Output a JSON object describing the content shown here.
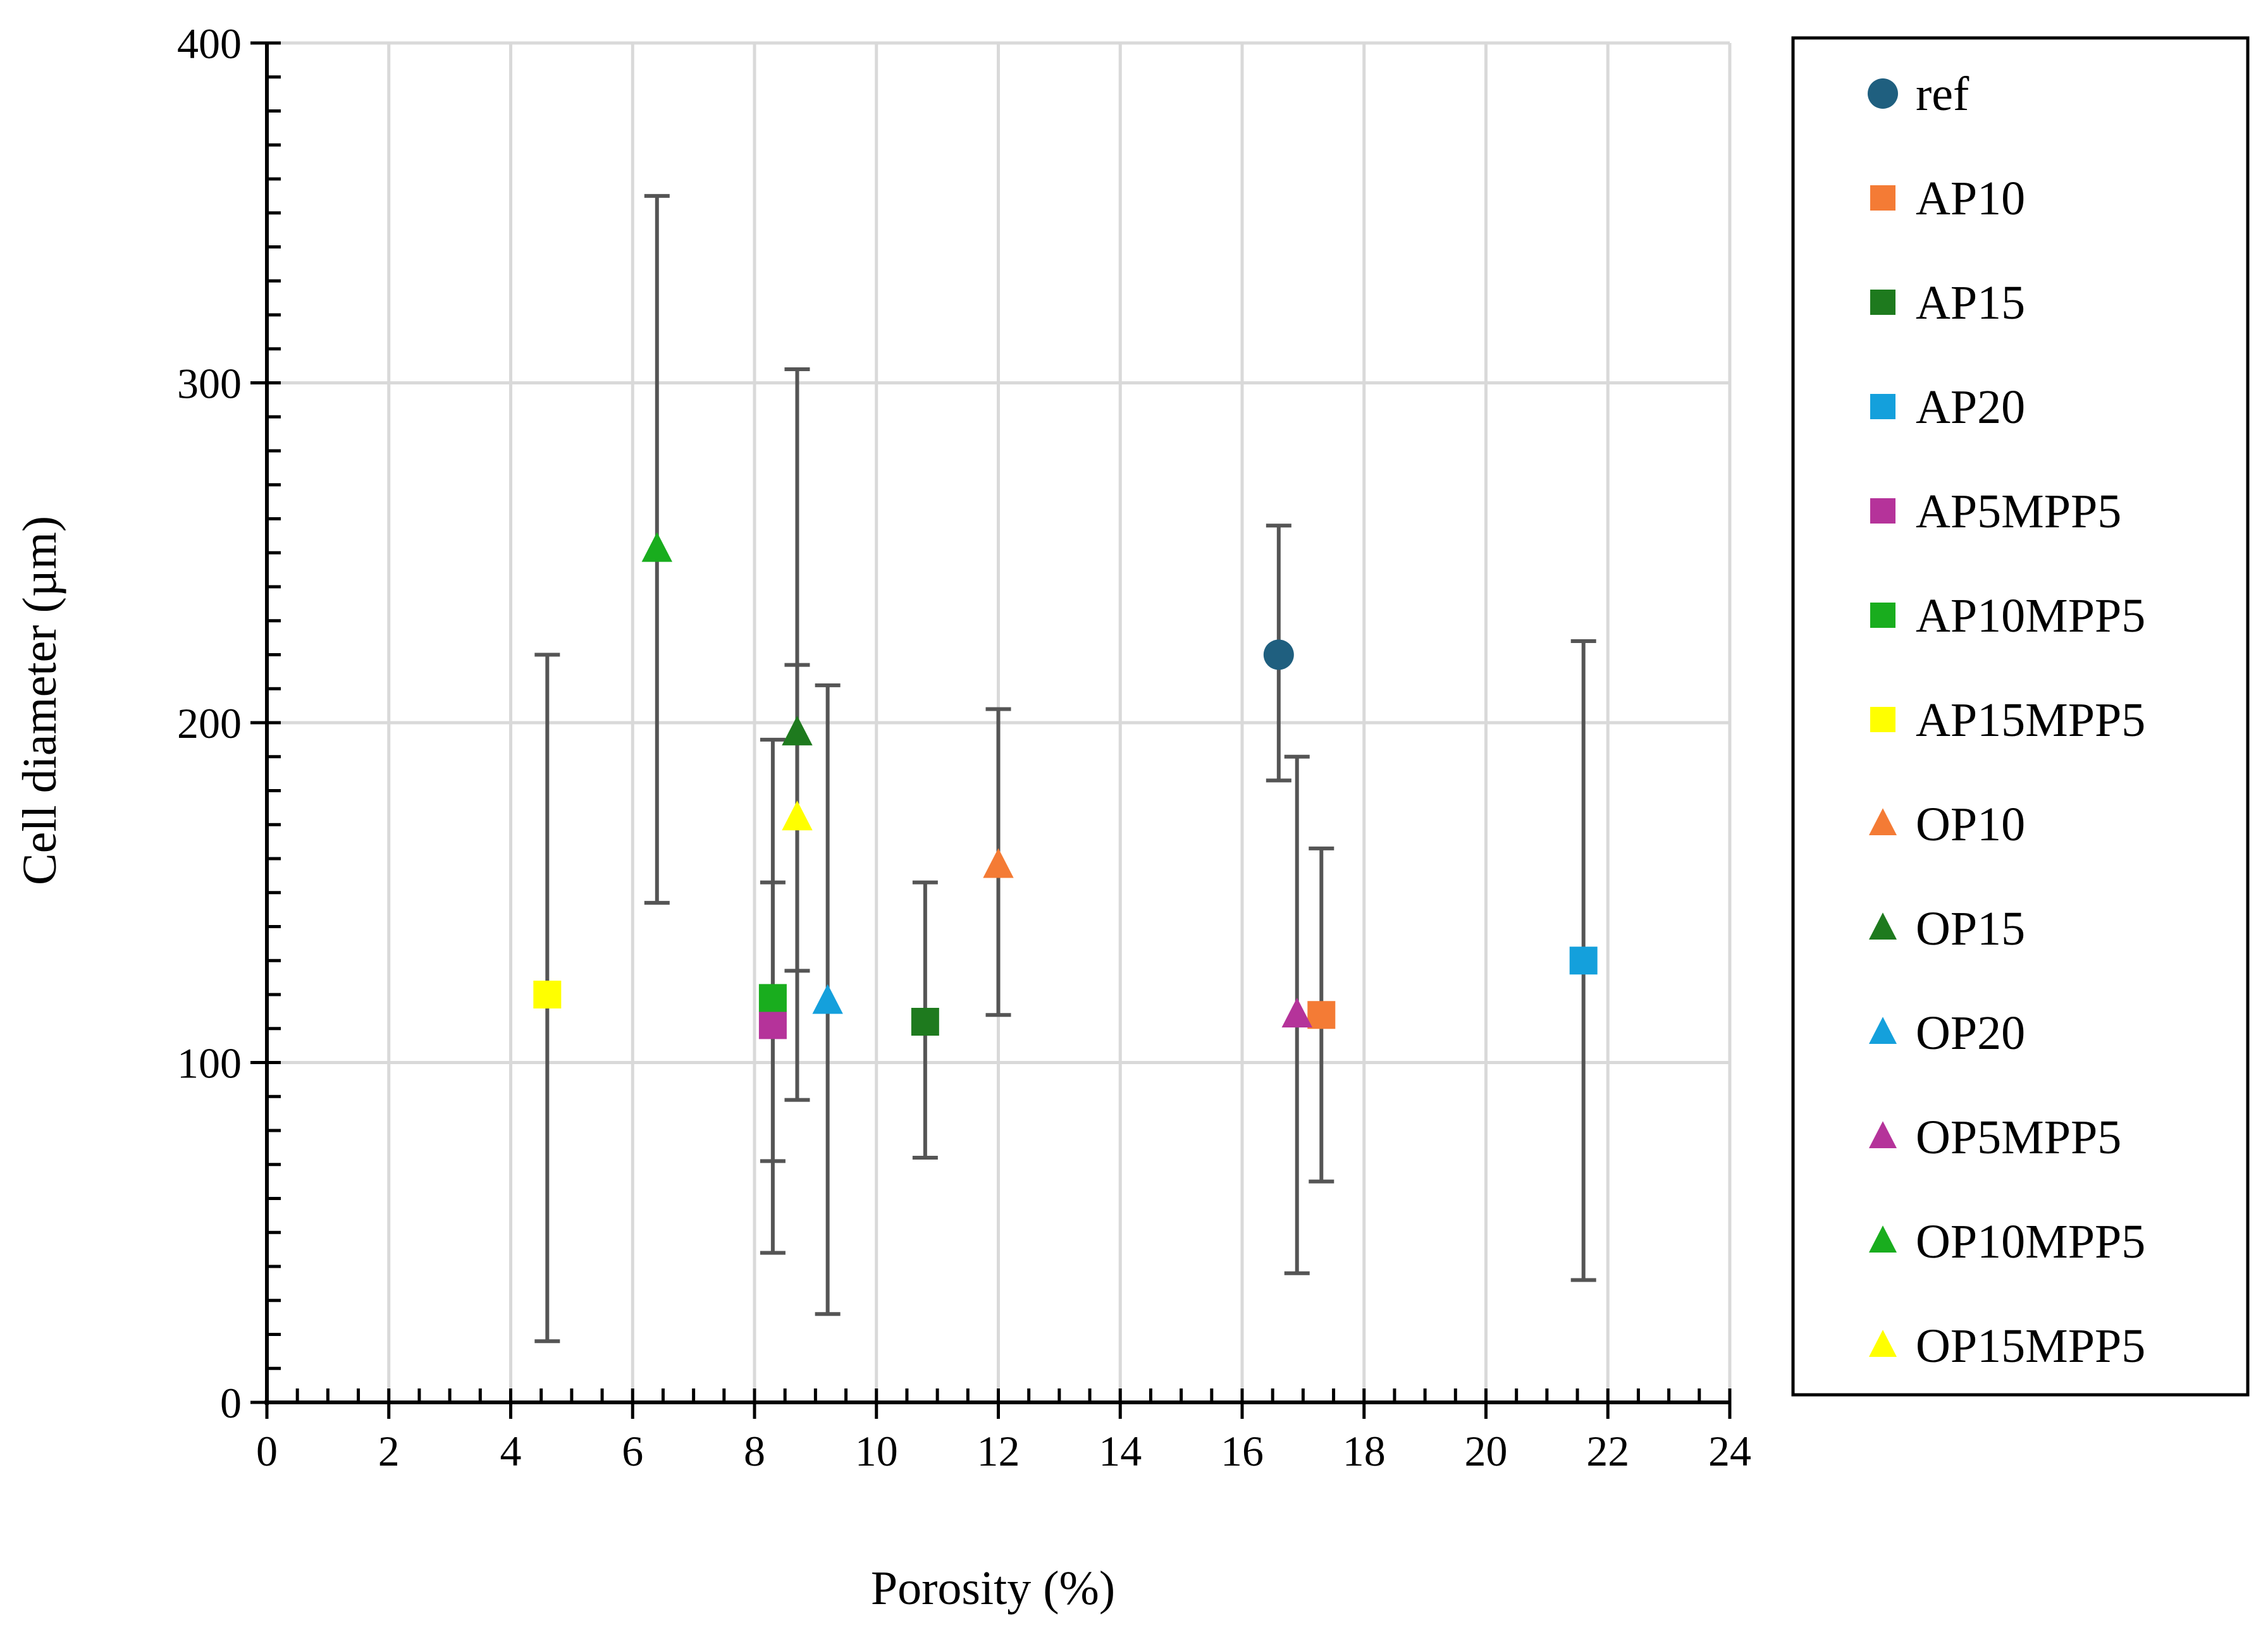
{
  "chart_data": {
    "type": "scatter",
    "xlabel": "Porosity (%)",
    "ylabel": "Cell diameter (µm)",
    "xlim": [
      0,
      24
    ],
    "ylim": [
      0,
      400
    ],
    "x_ticks": [
      "0",
      "2",
      "4",
      "6",
      "8",
      "10",
      "12",
      "14",
      "16",
      "18",
      "20",
      "22",
      "24"
    ],
    "y_ticks": [
      "0",
      "100",
      "200",
      "300",
      "400"
    ],
    "grid": true,
    "legend_position": "right",
    "series": [
      {
        "name": "ref",
        "marker": "circle",
        "color": "#1f5f7f",
        "points": [
          {
            "x": 16.6,
            "y": 220,
            "err_low": 183,
            "err_high": 258
          }
        ]
      },
      {
        "name": "AP10",
        "marker": "square",
        "color": "#f47b35",
        "points": [
          {
            "x": 17.3,
            "y": 114,
            "err_low": 65,
            "err_high": 163
          }
        ]
      },
      {
        "name": "AP15",
        "marker": "square",
        "color": "#1e7a1e",
        "points": [
          {
            "x": 10.8,
            "y": 112,
            "err_low": 72,
            "err_high": 153
          }
        ]
      },
      {
        "name": "AP20",
        "marker": "square",
        "color": "#14a0dc",
        "points": [
          {
            "x": 21.6,
            "y": 130,
            "err_low": 36,
            "err_high": 224
          }
        ]
      },
      {
        "name": "AP5MPP5",
        "marker": "square",
        "color": "#b5339a",
        "points": [
          {
            "x": 8.3,
            "y": 111,
            "err_low": 71,
            "err_high": 153
          }
        ]
      },
      {
        "name": "AP10MPP5",
        "marker": "square",
        "color": "#19ad1e",
        "points": [
          {
            "x": 8.3,
            "y": 119,
            "err_low": 44,
            "err_high": 195
          }
        ]
      },
      {
        "name": "AP15MPP5",
        "marker": "square",
        "color": "#ffff00",
        "points": [
          {
            "x": 4.6,
            "y": 120,
            "err_low": 18,
            "err_high": 220
          }
        ]
      },
      {
        "name": "OP10",
        "marker": "triangle",
        "color": "#f47b35",
        "points": [
          {
            "x": 12.0,
            "y": 158,
            "err_low": 114,
            "err_high": 204
          }
        ]
      },
      {
        "name": "OP15",
        "marker": "triangle",
        "color": "#1e7a1e",
        "points": [
          {
            "x": 8.7,
            "y": 197,
            "err_low": 89,
            "err_high": 304
          }
        ]
      },
      {
        "name": "OP20",
        "marker": "triangle",
        "color": "#14a0dc",
        "points": [
          {
            "x": 9.2,
            "y": 118,
            "err_low": 26,
            "err_high": 211
          }
        ]
      },
      {
        "name": "OP5MPP5",
        "marker": "triangle",
        "color": "#b5339a",
        "points": [
          {
            "x": 16.9,
            "y": 114,
            "err_low": 38,
            "err_high": 190
          }
        ]
      },
      {
        "name": "OP10MPP5",
        "marker": "triangle",
        "color": "#19ad1e",
        "points": [
          {
            "x": 6.4,
            "y": 251,
            "err_low": 147,
            "err_high": 355
          }
        ]
      },
      {
        "name": "OP15MPP5",
        "marker": "triangle",
        "color": "#ffff00",
        "points": [
          {
            "x": 8.7,
            "y": 172,
            "err_low": 127,
            "err_high": 217
          }
        ]
      }
    ]
  }
}
